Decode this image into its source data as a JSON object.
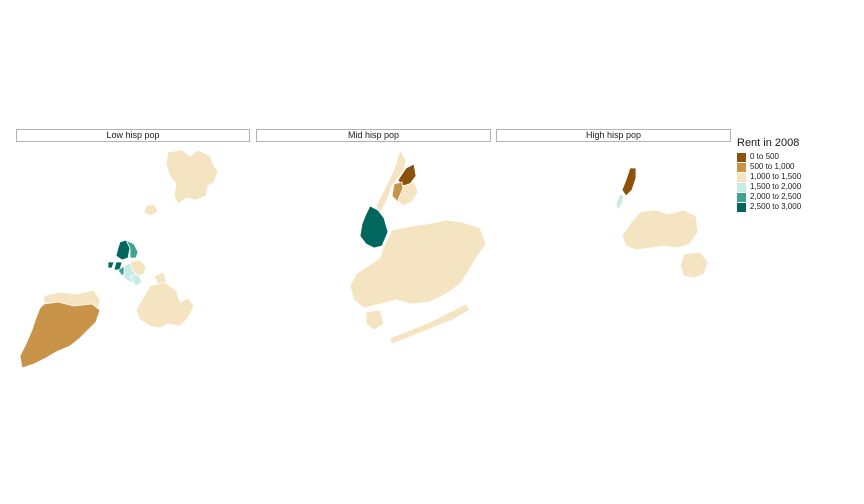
{
  "panels": [
    {
      "label": "Low hisp pop"
    },
    {
      "label": "Mid hisp pop"
    },
    {
      "label": "High hisp pop"
    }
  ],
  "legend": {
    "title": "Rent in 2008",
    "items": [
      {
        "label": "0 to 500",
        "color": "#8c510a"
      },
      {
        "label": "500 to 1,000",
        "color": "#c9944a"
      },
      {
        "label": "1,000 to 1,500",
        "color": "#f4e4c1"
      },
      {
        "label": "1,500 to 2,000",
        "color": "#c7eae5"
      },
      {
        "label": "2,000 to 2,500",
        "color": "#3fa390"
      },
      {
        "label": "2,500 to 3,000",
        "color": "#01665e"
      }
    ]
  }
}
